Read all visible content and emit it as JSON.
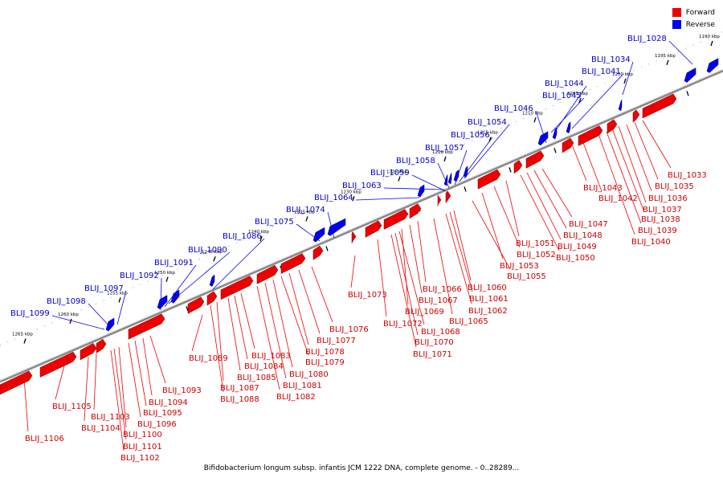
{
  "legend": {
    "forward": {
      "label": "Forward",
      "color": "#ee0000"
    },
    "reverse": {
      "label": "Reverse",
      "color": "#0000ee"
    }
  },
  "caption": "Bifidobacterium longum subsp. infantis JCM 1222 DNA, complete genome. - 0..28289...",
  "kbp_labels": [
    "1190 kbp",
    "1195 kbp",
    "1200 kbp",
    "1205 kbp",
    "1210 kbp",
    "1215 kbp",
    "1220 kbp",
    "1225 kbp",
    "1230 kbp",
    "1235 kbp",
    "1240 kbp",
    "1245 kbp",
    "1250 kbp",
    "1255 kbp",
    "1260 kbp",
    "1265 kbp"
  ],
  "reverse_genes": [
    "BLIJ_1028",
    "BLIJ_1034",
    "BLIJ_1041",
    "BLIJ_1044",
    "BLIJ_1045",
    "BLIJ_1046",
    "BLIJ_1054",
    "BLIJ_1056",
    "BLIJ_1057",
    "BLIJ_1058",
    "BLIJ_1059",
    "BLIJ_1063",
    "BLIJ_1064",
    "BLIJ_1074",
    "BLIJ_1075",
    "BLIJ_1086",
    "BLIJ_1090",
    "BLIJ_1091",
    "BLIJ_1092",
    "BLIJ_1097",
    "BLIJ_1098",
    "BLIJ_1099"
  ],
  "forward_genes": [
    "BLIJ_1033",
    "BLIJ_1035",
    "BLIJ_1036",
    "BLIJ_1037",
    "BLIJ_1038",
    "BLIJ_1039",
    "BLIJ_1040",
    "BLIJ_1043",
    "BLIJ_1042",
    "BLIJ_1047",
    "BLIJ_1048",
    "BLIJ_1049",
    "BLIJ_1050",
    "BLIJ_1051",
    "BLIJ_1052",
    "BLIJ_1053",
    "BLIJ_1055",
    "BLIJ_1060",
    "BLIJ_1061",
    "BLIJ_1062",
    "BLIJ_1065",
    "BLIJ_1066",
    "BLIJ_1067",
    "BLIJ_1069",
    "BLIJ_1068",
    "BLIJ_1070",
    "BLIJ_1071",
    "BLIJ_1072",
    "BLIJ_1073",
    "BLIJ_1076",
    "BLIJ_1077",
    "BLIJ_1078",
    "BLIJ_1079",
    "BLIJ_1080",
    "BLIJ_1081",
    "BLIJ_1082",
    "BLIJ_1083",
    "BLIJ_1084",
    "BLIJ_1085",
    "BLIJ_1087",
    "BLIJ_1088",
    "BLIJ_1089",
    "BLIJ_1093",
    "BLIJ_1094",
    "BLIJ_1095",
    "BLIJ_1096",
    "BLIJ_1100",
    "BLIJ_1101",
    "BLIJ_1102",
    "BLIJ_1103",
    "BLIJ_1104",
    "BLIJ_1105",
    "BLIJ_1106"
  ]
}
